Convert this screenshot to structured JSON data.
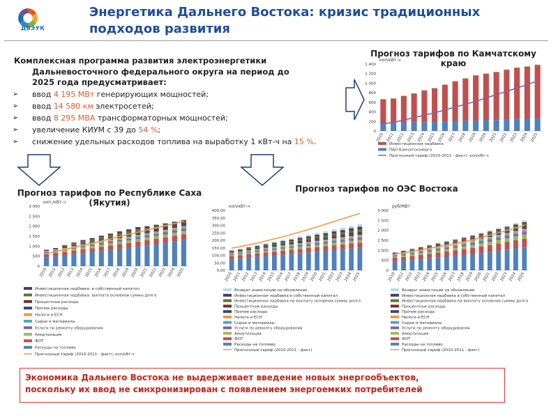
{
  "header": {
    "logo_text": "ДВЭУК",
    "title": "Энергетика Дальнего Востока: кризис традиционных подходов развития"
  },
  "lead": {
    "line1": "Комплексная программа развития электроэнергетики",
    "line2": "Дальневосточного федерального округа на период  до",
    "line3": "2025 года предусматривает:"
  },
  "bullets": [
    {
      "pre": "ввод ",
      "hl": "4 195 МВт",
      "post": " генерирующих мощностей;"
    },
    {
      "pre": "ввод ",
      "hl": "14 580 км",
      "post": " электросетей;"
    },
    {
      "pre": "ввод ",
      "hl": "8 295 МВА",
      "post": " трансформаторных мощностей;"
    },
    {
      "pre": "увеличение КИУМ с 39 до ",
      "hl": "54 %",
      "post": ";"
    },
    {
      "pre": "снижение удельных расходов топлива на выработку 1 кВт-ч на ",
      "hl": "15 %",
      "post": "."
    }
  ],
  "footer": {
    "line1": "Экономика Дальнего Востока не выдерживает введение новых энергообъектов,",
    "line2": "поскольку их ввод не синхронизирован с появлением энергоемких потребителей"
  },
  "colors": {
    "title": "#1f4e9c",
    "highlight": "#e4572e",
    "footer_red": "#c0281f",
    "arrow_fill": "#ffffff",
    "arrow_stroke": "#1f3f6e"
  },
  "chart_data": [
    {
      "id": "kamchatka",
      "type": "bar",
      "stacked": true,
      "title": "Прогноз тарифов по Камчатскому краю",
      "ylabel": "коп/кВт-ч",
      "ylim": [
        0,
        1400
      ],
      "yticks": [
        "0",
        "200",
        "400",
        "600",
        "800",
        "1 000",
        "1 200",
        "1 400"
      ],
      "categories": [
        "2010",
        "2011",
        "2012",
        "2013",
        "2014",
        "2015",
        "2016",
        "2017",
        "2018",
        "2019",
        "2020",
        "2021",
        "2022",
        "2023",
        "2024",
        "2025"
      ],
      "series": [
        {
          "name": "ПАО Камчатскэнерго",
          "color": "#4f81bd",
          "values": [
            160,
            175,
            170,
            180,
            185,
            190,
            195,
            205,
            215,
            220,
            225,
            230,
            240,
            250,
            255,
            270
          ]
        },
        {
          "name": "Инвестиционная надбавка",
          "color": "#c0504d",
          "values": [
            500,
            500,
            560,
            600,
            660,
            700,
            770,
            830,
            880,
            940,
            970,
            1000,
            1040,
            1070,
            1090,
            1110
          ]
        },
        {
          "name": "",
          "color": "#9bbb59",
          "values": [
            10,
            10,
            10,
            10,
            10,
            10,
            10,
            10,
            10,
            10,
            10,
            10,
            10,
            10,
            10,
            10
          ]
        }
      ],
      "line": {
        "name": "Прогнозный тариф (2010-2011 - факт), коп/кВт-ч",
        "color": "#8064a2",
        "values": [
          150,
          180,
          230,
          280,
          330,
          380,
          440,
          500,
          560,
          620,
          690,
          760,
          830,
          900,
          970,
          1050
        ]
      },
      "legend_rows": 4
    },
    {
      "id": "yakutia",
      "type": "bar",
      "stacked": true,
      "title": "Прогноз тарифов по Республике Саха (Якутия)",
      "ylabel": "коп./кВт-ч",
      "ylim": [
        0,
        3000
      ],
      "yticks": [
        "0",
        "500",
        "1 000",
        "1 500",
        "2 000",
        "2 500",
        "3 000"
      ],
      "categories": [
        "2010",
        "2011",
        "2012",
        "2013",
        "2014",
        "2015",
        "2016",
        "2017",
        "2018",
        "2019",
        "2020",
        "2021",
        "2022",
        "2023",
        "2024",
        "2025"
      ],
      "series": [
        {
          "name": "Расходы на топливо",
          "color": "#4f81bd",
          "values": [
            450,
            500,
            540,
            600,
            660,
            700,
            760,
            810,
            870,
            920,
            980,
            1040,
            1100,
            1160,
            1230,
            1300
          ]
        },
        {
          "name": "ФОТ",
          "color": "#c0504d",
          "values": [
            150,
            160,
            170,
            180,
            190,
            200,
            210,
            220,
            230,
            240,
            250,
            260,
            270,
            280,
            290,
            300
          ]
        },
        {
          "name": "Амортизация",
          "color": "#9bbb59",
          "values": [
            60,
            70,
            80,
            90,
            95,
            100,
            110,
            115,
            120,
            125,
            130,
            135,
            140,
            145,
            150,
            155
          ]
        },
        {
          "name": "Услуги по ремонту оборудования",
          "color": "#8064a2",
          "values": [
            40,
            45,
            50,
            55,
            60,
            65,
            70,
            75,
            80,
            85,
            90,
            95,
            100,
            105,
            110,
            115
          ]
        },
        {
          "name": "Сырье и материалы",
          "color": "#4bacc6",
          "values": [
            30,
            32,
            35,
            38,
            40,
            42,
            45,
            48,
            50,
            52,
            55,
            58,
            60,
            62,
            65,
            68
          ]
        },
        {
          "name": "Налоги и ЕСН",
          "color": "#f79646",
          "values": [
            30,
            32,
            35,
            38,
            40,
            42,
            45,
            48,
            50,
            52,
            55,
            58,
            60,
            62,
            65,
            68
          ]
        },
        {
          "name": "Прочие расходы",
          "color": "#2c4d75",
          "values": [
            40,
            45,
            50,
            55,
            60,
            65,
            70,
            75,
            80,
            85,
            90,
            95,
            100,
            105,
            110,
            115
          ]
        },
        {
          "name": "Процентные расходы",
          "color": "#772c2a",
          "values": [
            20,
            22,
            25,
            28,
            30,
            32,
            35,
            38,
            40,
            42,
            45,
            48,
            50,
            52,
            55,
            58
          ]
        },
        {
          "name": "Инвестиционная надбавка: выплата основной суммы долга",
          "color": "#5f7530",
          "values": [
            0,
            0,
            40,
            60,
            80,
            100,
            110,
            120,
            130,
            140,
            150,
            120,
            110,
            100,
            90,
            80
          ]
        },
        {
          "name": "Инвестиционная надбавка: в собственный капитал",
          "color": "#4d3b62",
          "values": [
            0,
            0,
            30,
            40,
            50,
            60,
            70,
            80,
            90,
            100,
            110,
            90,
            80,
            70,
            60,
            50
          ]
        }
      ],
      "line": {
        "name": "Прогнозный тариф (2010-2011 - факт), коп/кВт-ч",
        "color": "#f79646",
        "values": [
          620,
          720,
          830,
          940,
          1050,
          1150,
          1260,
          1370,
          1480,
          1590,
          1700,
          1810,
          1920,
          2030,
          2140,
          2250
        ]
      },
      "legend_rows": 11
    },
    {
      "id": "oes",
      "type": "bar",
      "stacked": true,
      "title": "Прогноз тарифов по ОЭС Востока",
      "ylabel": "коп/кВт-ч",
      "ylim": [
        0,
        400
      ],
      "yticks": [
        "0,00",
        "50,00",
        "100,00",
        "150,00",
        "200,00",
        "250,00",
        "300,00",
        "350,00",
        "400,00"
      ],
      "categories": [
        "2010",
        "2011",
        "2012",
        "2013",
        "2014",
        "2015",
        "2016",
        "2017",
        "2018",
        "2019",
        "2020",
        "2021",
        "2022",
        "2023",
        "2024",
        "2025"
      ],
      "series": [
        {
          "name": "Расходы на топливо",
          "color": "#4f81bd",
          "values": [
            75,
            80,
            85,
            90,
            95,
            100,
            105,
            110,
            115,
            120,
            125,
            130,
            135,
            140,
            145,
            150
          ]
        },
        {
          "name": "ФОТ",
          "color": "#c0504d",
          "values": [
            20,
            21,
            22,
            23,
            24,
            25,
            26,
            27,
            28,
            29,
            30,
            31,
            32,
            33,
            34,
            35
          ]
        },
        {
          "name": "Амортизация",
          "color": "#9bbb59",
          "values": [
            8,
            9,
            10,
            10,
            11,
            12,
            12,
            13,
            14,
            14,
            15,
            16,
            16,
            17,
            18,
            18
          ]
        },
        {
          "name": "Услуги по ремонту оборудования",
          "color": "#8064a2",
          "values": [
            6,
            6,
            7,
            7,
            8,
            8,
            9,
            9,
            10,
            10,
            11,
            11,
            12,
            12,
            13,
            13
          ]
        },
        {
          "name": "Сырье и материалы",
          "color": "#4bacc6",
          "values": [
            5,
            5,
            5,
            6,
            6,
            6,
            7,
            7,
            7,
            8,
            8,
            8,
            9,
            9,
            9,
            10
          ]
        },
        {
          "name": "Налоги и ЕСН",
          "color": "#f79646",
          "values": [
            5,
            5,
            5,
            6,
            6,
            6,
            7,
            7,
            7,
            8,
            8,
            8,
            9,
            9,
            9,
            10
          ]
        },
        {
          "name": "Прочие расходы",
          "color": "#2c4d75",
          "values": [
            6,
            6,
            7,
            7,
            8,
            8,
            9,
            9,
            10,
            10,
            11,
            11,
            12,
            12,
            13,
            13
          ]
        },
        {
          "name": "Процентные расходы",
          "color": "#772c2a",
          "values": [
            3,
            3,
            4,
            4,
            4,
            5,
            5,
            5,
            6,
            6,
            6,
            7,
            7,
            7,
            8,
            8
          ]
        },
        {
          "name": "Инвестиционная надбавка на выплату основной суммы долга",
          "color": "#5f7530",
          "values": [
            2,
            3,
            4,
            5,
            6,
            7,
            8,
            9,
            10,
            11,
            12,
            13,
            14,
            15,
            16,
            17
          ]
        },
        {
          "name": "Инвестиционная надбавка в собственный капитал",
          "color": "#4d3b62",
          "values": [
            2,
            3,
            4,
            5,
            6,
            7,
            8,
            9,
            10,
            11,
            12,
            13,
            14,
            15,
            16,
            17
          ]
        },
        {
          "name": "Возврат инвестиций на обновление",
          "color": "#b7dee8",
          "values": [
            2,
            3,
            4,
            5,
            6,
            7,
            8,
            9,
            10,
            11,
            12,
            13,
            14,
            15,
            16,
            17
          ]
        }
      ],
      "line": {
        "name": "Прогнозный тариф (2010-2011 - факт)",
        "color": "#f79646",
        "values": [
          148,
          158,
          170,
          182,
          196,
          210,
          224,
          240,
          256,
          272,
          290,
          308,
          326,
          344,
          362,
          380
        ]
      },
      "legend_rows": 12
    },
    {
      "id": "oes2",
      "type": "bar",
      "stacked": true,
      "title": "",
      "ylabel": "руб/МВт",
      "ylim": [
        0,
        3000
      ],
      "yticks": [
        "0",
        "500",
        "1 000",
        "1 500",
        "2 000",
        "2 500",
        "3 000"
      ],
      "categories": [
        "2010",
        "2011",
        "2012",
        "2013",
        "2014",
        "2015",
        "2016",
        "2017",
        "2018",
        "2019",
        "2020",
        "2021",
        "2022",
        "2023",
        "2024",
        "2025"
      ],
      "series": [
        {
          "name": "Расходы на топливо",
          "color": "#4f81bd",
          "values": [
            450,
            480,
            520,
            560,
            600,
            640,
            680,
            720,
            770,
            820,
            870,
            920,
            980,
            1040,
            1100,
            1160
          ]
        },
        {
          "name": "ФОТ",
          "color": "#c0504d",
          "values": [
            180,
            190,
            200,
            215,
            230,
            245,
            260,
            275,
            290,
            305,
            320,
            340,
            360,
            380,
            400,
            420
          ]
        },
        {
          "name": "Амортизация",
          "color": "#9bbb59",
          "values": [
            60,
            70,
            80,
            90,
            100,
            110,
            120,
            130,
            140,
            150,
            160,
            170,
            180,
            190,
            200,
            210
          ]
        },
        {
          "name": "Услуги по ремонту оборудования",
          "color": "#8064a2",
          "values": [
            50,
            55,
            60,
            65,
            70,
            75,
            80,
            85,
            90,
            95,
            100,
            105,
            110,
            115,
            120,
            125
          ]
        },
        {
          "name": "Сырье и материалы",
          "color": "#4bacc6",
          "values": [
            40,
            42,
            45,
            48,
            50,
            52,
            55,
            58,
            60,
            62,
            65,
            68,
            70,
            72,
            75,
            78
          ]
        },
        {
          "name": "Налоги и ЕСН",
          "color": "#f79646",
          "values": [
            40,
            42,
            45,
            48,
            50,
            52,
            55,
            58,
            60,
            62,
            65,
            68,
            70,
            72,
            75,
            78
          ]
        },
        {
          "name": "Прочие расходы",
          "color": "#2c4d75",
          "values": [
            40,
            45,
            50,
            55,
            60,
            65,
            70,
            75,
            80,
            85,
            90,
            95,
            100,
            105,
            110,
            115
          ]
        },
        {
          "name": "Процентные расходы",
          "color": "#772c2a",
          "values": [
            20,
            22,
            25,
            28,
            30,
            32,
            35,
            38,
            40,
            42,
            45,
            48,
            50,
            52,
            55,
            58
          ]
        },
        {
          "name": "Инвестиционная надбавка на выплату основной суммы долга",
          "color": "#5f7530",
          "values": [
            10,
            15,
            20,
            25,
            30,
            35,
            40,
            45,
            50,
            55,
            60,
            65,
            70,
            75,
            80,
            85
          ]
        },
        {
          "name": "Инвестиционная надбавка в собственный капитал",
          "color": "#4d3b62",
          "values": [
            10,
            15,
            20,
            25,
            30,
            35,
            40,
            45,
            50,
            55,
            60,
            65,
            70,
            75,
            80,
            85
          ]
        },
        {
          "name": "Возврат инвестиций на обновление",
          "color": "#b7dee8",
          "values": [
            10,
            15,
            20,
            25,
            30,
            35,
            40,
            45,
            50,
            55,
            60,
            65,
            70,
            75,
            80,
            85
          ]
        }
      ],
      "line": {
        "name": "Прогнозный тариф (2010-2011 - факт)",
        "color": "#f79646",
        "values": [
          820,
          880,
          950,
          1020,
          1100,
          1180,
          1260,
          1340,
          1430,
          1530,
          1640,
          1760,
          1880,
          2000,
          2120,
          2250
        ]
      },
      "legend_rows": 12
    }
  ]
}
